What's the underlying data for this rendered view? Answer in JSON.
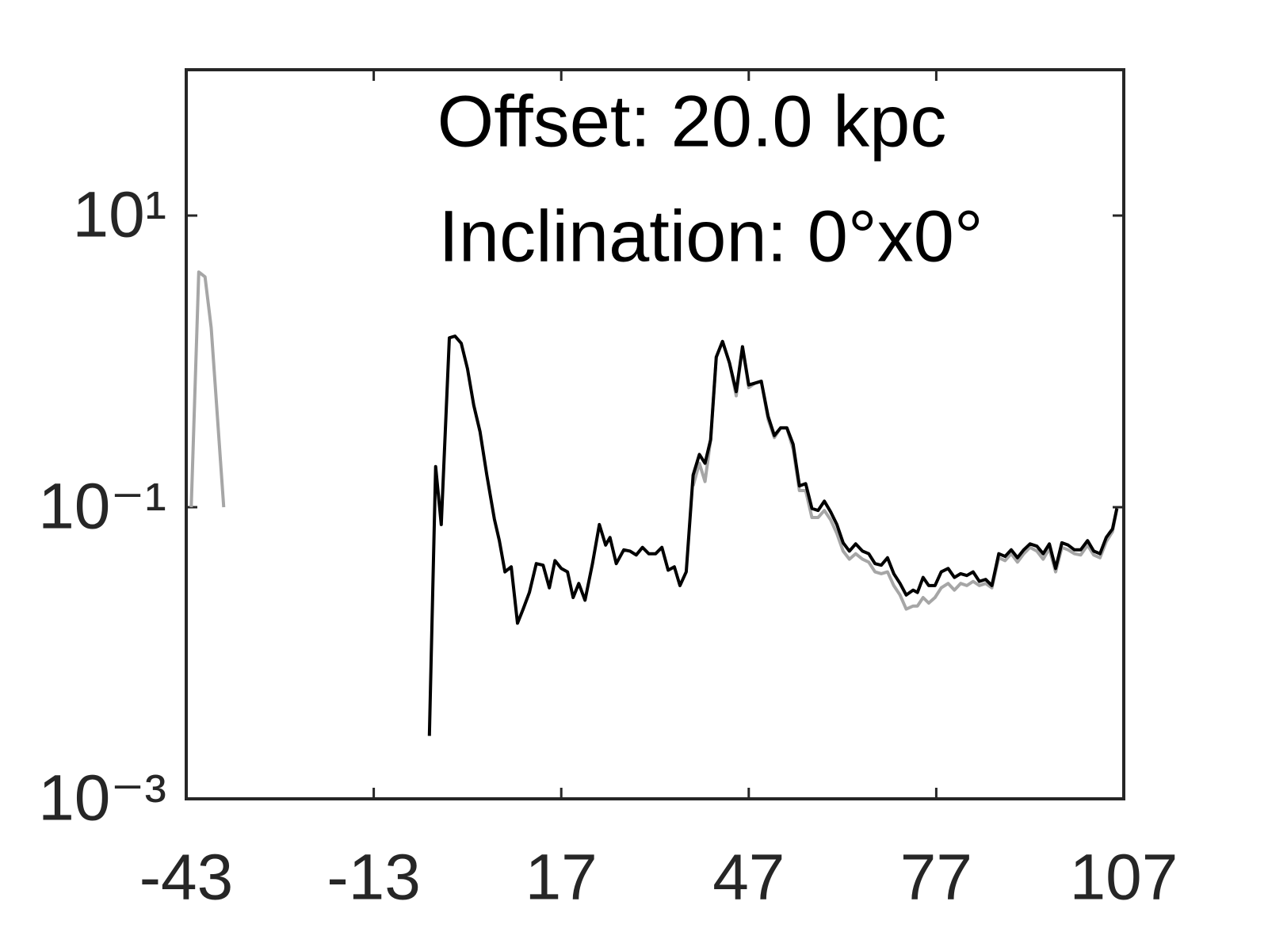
{
  "chart_data": {
    "type": "line",
    "annotations": [
      "Offset: 20.0 kpc",
      "Inclination: 0°x0°"
    ],
    "xlim": [
      -43,
      107
    ],
    "xticks": [
      -43,
      -13,
      17,
      47,
      77,
      107
    ],
    "ylim": [
      0.001,
      100
    ],
    "log_y": true,
    "yticks": [
      {
        "value": 0.001,
        "label": "10⁻³"
      },
      {
        "value": 0.1,
        "label": "10⁻¹"
      },
      {
        "value": 10,
        "label": "10¹"
      }
    ],
    "series": [
      {
        "color": "#a6a6a6",
        "x": [
          -42.2,
          -41,
          -40,
          -39,
          -37,
          -36,
          38.1,
          39.1,
          40,
          40.9,
          41.8,
          42.8,
          43.9,
          45,
          46,
          47,
          48,
          49,
          50.1,
          51.1,
          52.1,
          53.1,
          54.1,
          55.1,
          56.1,
          57.1,
          58.1,
          59.1,
          60.1,
          61.1,
          62.1,
          63.1,
          64.1,
          65.2,
          66.2,
          67.2,
          68.2,
          69.2,
          70.2,
          71.2,
          72.2,
          73.3,
          74,
          74.9,
          75.8,
          76.8,
          77.8,
          78.9,
          79.9,
          80.9,
          81.9,
          82.9,
          83.9,
          84.9,
          85.9,
          87,
          88,
          89,
          90,
          91,
          92,
          93.1,
          94.1,
          95.1,
          96.1,
          97.1,
          98.1,
          99.1,
          100.1,
          101.2,
          102.2,
          103.2,
          104.2,
          105.2,
          105.9
        ],
        "values": [
          0.1,
          4.1,
          3.8,
          1.7,
          0.1,
          null,
          0.14,
          0.2,
          0.15,
          0.29,
          1.07,
          1.37,
          0.98,
          0.58,
          1.26,
          0.66,
          0.71,
          0.73,
          0.4,
          0.3,
          0.35,
          0.35,
          0.25,
          0.13,
          0.13,
          0.085,
          0.085,
          0.095,
          0.082,
          0.066,
          0.05,
          0.044,
          0.048,
          0.044,
          0.042,
          0.036,
          0.035,
          0.036,
          0.029,
          0.025,
          0.02,
          0.021,
          0.021,
          0.024,
          0.022,
          0.024,
          0.028,
          0.03,
          0.027,
          0.03,
          0.029,
          0.031,
          0.029,
          0.03,
          0.028,
          0.045,
          0.043,
          0.048,
          0.042,
          0.048,
          0.053,
          0.05,
          0.044,
          0.052,
          0.036,
          0.053,
          0.051,
          0.048,
          0.047,
          0.055,
          0.047,
          0.045,
          0.058,
          0.068,
          0.098
        ]
      },
      {
        "color": "#000000",
        "x": [
          -4.1,
          -3.1,
          -2.2,
          -0.9,
          0,
          1,
          2,
          3,
          4,
          5.1,
          6.3,
          7.1,
          8,
          9,
          10,
          10.9,
          11.9,
          13,
          14.1,
          15.1,
          16,
          17,
          18,
          18.9,
          19.8,
          20.8,
          22,
          23.1,
          24.1,
          24.8,
          25.8,
          27,
          28,
          29,
          30,
          31,
          32.1,
          33.1,
          34.1,
          35.1,
          36,
          37,
          38.1,
          39.1,
          40,
          40.9,
          41.8,
          42.8,
          43.9,
          45,
          46,
          47,
          48,
          49,
          50.1,
          51.1,
          52.1,
          53.1,
          54.1,
          55.1,
          56.1,
          57.1,
          58.1,
          59.1,
          60.1,
          61.1,
          62.1,
          63.1,
          64.1,
          65.2,
          66.2,
          67.2,
          68.2,
          69.2,
          70.2,
          71.2,
          72.2,
          73.3,
          74,
          74.9,
          75.8,
          76.8,
          77.8,
          78.9,
          79.9,
          80.9,
          81.9,
          82.9,
          83.9,
          84.9,
          85.9,
          87,
          88,
          89,
          90,
          91,
          92,
          93.1,
          94.1,
          95.1,
          96.1,
          97.1,
          98.1,
          99.1,
          100.1,
          101.2,
          102.2,
          103.2,
          104.2,
          105.2,
          105.9
        ],
        "values": [
          0.0027,
          0.19,
          0.076,
          1.45,
          1.49,
          1.33,
          0.89,
          0.5,
          0.33,
          0.166,
          0.083,
          0.059,
          0.036,
          0.039,
          0.016,
          0.02,
          0.026,
          0.041,
          0.04,
          0.028,
          0.043,
          0.038,
          0.036,
          0.024,
          0.03,
          0.023,
          0.041,
          0.076,
          0.055,
          0.062,
          0.041,
          0.051,
          0.05,
          0.047,
          0.053,
          0.048,
          0.048,
          0.053,
          0.037,
          0.039,
          0.029,
          0.036,
          0.166,
          0.23,
          0.2,
          0.29,
          1.07,
          1.37,
          0.98,
          0.62,
          1.26,
          0.69,
          0.71,
          0.73,
          0.42,
          0.31,
          0.35,
          0.35,
          0.27,
          0.14,
          0.145,
          0.098,
          0.095,
          0.11,
          0.093,
          0.076,
          0.057,
          0.05,
          0.056,
          0.05,
          0.048,
          0.041,
          0.04,
          0.045,
          0.035,
          0.03,
          0.025,
          0.027,
          0.026,
          0.033,
          0.029,
          0.029,
          0.036,
          0.038,
          0.033,
          0.035,
          0.034,
          0.036,
          0.031,
          0.032,
          0.029,
          0.048,
          0.046,
          0.051,
          0.045,
          0.051,
          0.056,
          0.054,
          0.048,
          0.056,
          0.038,
          0.057,
          0.055,
          0.051,
          0.051,
          0.059,
          0.05,
          0.048,
          0.062,
          0.071,
          0.098
        ]
      }
    ]
  }
}
